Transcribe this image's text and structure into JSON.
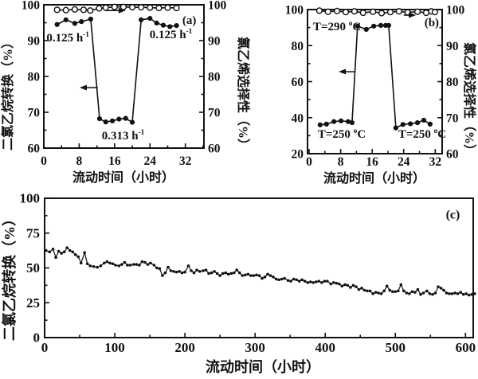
{
  "colors": {
    "background": "#ffffff",
    "ink": "#111111"
  },
  "chart_data": [
    {
      "id": "a",
      "type": "line",
      "panel_label": "(a)",
      "xlabel": "流动时间（小时）",
      "ylabel_left": "二氯乙烷转换（%）",
      "ylabel_right": "氯乙烯选择性（%）",
      "xlim": [
        0,
        36.2
      ],
      "x_ticks": [
        0,
        8,
        16,
        24,
        32
      ],
      "x_minor_ticks": [
        4,
        12,
        20,
        28,
        36
      ],
      "ylim_left": [
        60,
        100
      ],
      "y_left_ticks": [
        100,
        90,
        80,
        70,
        60
      ],
      "y_left_minor_ticks": [
        65,
        75,
        85,
        95
      ],
      "ylim_right": [
        60,
        100
      ],
      "y_right_ticks": [
        100,
        90,
        80,
        70,
        60
      ],
      "y_right_minor_ticks": [
        65,
        75,
        85,
        95
      ],
      "grid": false,
      "legend_position": "none",
      "series": [
        {
          "name": "二氯乙烷转换",
          "axis": "left",
          "marker": "filled_circle",
          "points": [
            [
              3,
              94.5
            ],
            [
              5,
              95.8
            ],
            [
              7,
              94.8
            ],
            [
              8.5,
              95.3
            ],
            [
              10.6,
              96.0
            ],
            [
              12.6,
              68.2
            ],
            [
              14,
              67.3
            ],
            [
              15.5,
              67.6
            ],
            [
              17,
              68.1
            ],
            [
              18.5,
              68.3
            ],
            [
              20,
              67.2
            ],
            [
              22,
              95.8
            ],
            [
              24,
              96.2
            ],
            [
              25.5,
              94.9
            ],
            [
              27,
              94.3
            ],
            [
              28.5,
              93.9
            ],
            [
              30,
              94.2
            ]
          ]
        },
        {
          "name": "氯乙烯选择性",
          "axis": "right",
          "marker": "open_circle",
          "points": [
            [
              3,
              98.6
            ],
            [
              5,
              98.5
            ],
            [
              7,
              98.7
            ],
            [
              9,
              98.6
            ],
            [
              10.5,
              98.4
            ],
            [
              12.5,
              99.0
            ],
            [
              14,
              99.2
            ],
            [
              16,
              99.4
            ],
            [
              18,
              99.4
            ],
            [
              20,
              99.3
            ],
            [
              22,
              99.3
            ],
            [
              24,
              99.2
            ],
            [
              26,
              99.1
            ],
            [
              28,
              99.2
            ],
            [
              30,
              99.1
            ]
          ]
        }
      ],
      "annotations": [
        {
          "text": "0.125 h",
          "sup": "-1",
          "x": 0.6,
          "y": 89.8,
          "anchor": "start"
        },
        {
          "text": "0.125 h",
          "sup": "-1",
          "x": 23.9,
          "y": 90.7,
          "anchor": "start"
        },
        {
          "text": "0.313 h",
          "sup": "-1",
          "x": 13.1,
          "y": 62.4,
          "anchor": "start"
        },
        {
          "text": "(a)",
          "x": 32.9,
          "y": 94.7,
          "anchor": "middle"
        }
      ],
      "arrows": [
        {
          "tail_x": 13.9,
          "tip_x": 18.5,
          "y": 98.4
        },
        {
          "tail_x": 12.2,
          "tip_x": 8.1,
          "y": 76.9
        }
      ]
    },
    {
      "id": "b",
      "type": "line",
      "panel_label": "(b)",
      "xlabel": "流动时间（小时）",
      "ylabel_left": "",
      "ylabel_right": "氯乙烯选择性（%）",
      "xlim": [
        -0.4,
        33.75
      ],
      "x_ticks": [
        0,
        8,
        16,
        24,
        32
      ],
      "x_minor_ticks": [
        4,
        12,
        20,
        28
      ],
      "ylim_left": [
        20,
        100
      ],
      "y_left_ticks": [
        100,
        80,
        60,
        40,
        20
      ],
      "y_left_minor_ticks": [
        30,
        50,
        70,
        90
      ],
      "ylim_right": [
        60,
        100
      ],
      "y_right_ticks": [
        100,
        90,
        80,
        70,
        60
      ],
      "y_right_minor_ticks": [
        65,
        75,
        85,
        95
      ],
      "grid": false,
      "legend_position": "none",
      "series": [
        {
          "name": "二氯乙烷转换",
          "axis": "left",
          "marker": "filled_circle",
          "points": [
            [
              2.8,
              36.0
            ],
            [
              4.4,
              36.4
            ],
            [
              6.3,
              37.8
            ],
            [
              8.1,
              38.2
            ],
            [
              9.9,
              37.8
            ],
            [
              10.9,
              37.2
            ],
            [
              12.3,
              90.8
            ],
            [
              14.5,
              89.0
            ],
            [
              16.4,
              90.8
            ],
            [
              18.2,
              91.2
            ],
            [
              19.4,
              91.2
            ],
            [
              20.2,
              91.2
            ],
            [
              22,
              34.3
            ],
            [
              23.8,
              36.2
            ],
            [
              25.7,
              36.6
            ],
            [
              27.5,
              37.2
            ],
            [
              29.1,
              38.6
            ],
            [
              30.7,
              36.4
            ]
          ]
        },
        {
          "name": "氯乙烯选择性",
          "axis": "right",
          "marker": "open_circle",
          "points": [
            [
              2.6,
              99.7
            ],
            [
              4.8,
              99.4
            ],
            [
              7.1,
              99.6
            ],
            [
              9.3,
              99.3
            ],
            [
              11.5,
              99.5
            ],
            [
              13.7,
              99.1
            ],
            [
              16.2,
              99.4
            ],
            [
              18.4,
              99.0
            ],
            [
              20.6,
              99.3
            ],
            [
              22.8,
              99.5
            ],
            [
              25,
              99.2
            ],
            [
              27.5,
              99.4
            ],
            [
              29.7,
              99.1
            ],
            [
              31,
              99.5
            ],
            [
              31.9,
              99.3
            ]
          ]
        }
      ],
      "annotations": [
        {
          "text": "T=290 ",
          "sup": "o",
          "tail": "C",
          "x": 1.0,
          "y": 88.5,
          "anchor": "start"
        },
        {
          "text": "T=250 ",
          "sup": "o",
          "tail": "C",
          "x": 2.2,
          "y": 28.8,
          "anchor": "start"
        },
        {
          "text": "T=250 ",
          "sup": "o",
          "tail": "C",
          "x": 22.6,
          "y": 28.8,
          "anchor": "start"
        },
        {
          "text": "(b)",
          "x": 31.1,
          "y": 90.7,
          "anchor": "middle"
        }
      ],
      "arrows": [
        {
          "tail_x": 24.0,
          "tip_x": 27.1,
          "y": 96.9
        },
        {
          "tail_x": 11.7,
          "tip_x": 7.5,
          "y": 65.5
        }
      ]
    },
    {
      "id": "c",
      "type": "line",
      "panel_label": "(c)",
      "xlabel": "流动时间（小时）",
      "ylabel_left": "二氯乙烷转换（%）",
      "ylabel_right": "",
      "xlim": [
        0,
        611
      ],
      "x_ticks": [
        0,
        100,
        200,
        300,
        400,
        500,
        600
      ],
      "x_minor_ticks": [
        50,
        150,
        250,
        350,
        450,
        550
      ],
      "ylim_left": [
        0,
        100
      ],
      "y_left_ticks": [
        100,
        75,
        50,
        25,
        0
      ],
      "y_left_minor_ticks": [
        12.5,
        37.5,
        62.5,
        87.5
      ],
      "grid": false,
      "legend_position": "none",
      "series": [
        {
          "name": "二氯乙烷转换",
          "axis": "left",
          "marker": "filled_circle_small",
          "points": [
            [
              2,
              62.5
            ],
            [
              7,
              61.5
            ],
            [
              12,
              63.5
            ],
            [
              16,
              57.5
            ],
            [
              20,
              62
            ],
            [
              24,
              60.5
            ],
            [
              28,
              61.5
            ],
            [
              32,
              64.5
            ],
            [
              36,
              62.5
            ],
            [
              40,
              61.5
            ],
            [
              44,
              59.5
            ],
            [
              48,
              58
            ],
            [
              52,
              53.5
            ],
            [
              57,
              61
            ],
            [
              61,
              53
            ],
            [
              65,
              51.5
            ],
            [
              70,
              51
            ],
            [
              75,
              50.5
            ],
            [
              80,
              51.5
            ],
            [
              85,
              53.5
            ],
            [
              89,
              54.5
            ],
            [
              93,
              53.5
            ],
            [
              97,
              53
            ],
            [
              101,
              52
            ],
            [
              106,
              51.5
            ],
            [
              110,
              52.5
            ],
            [
              114,
              54
            ],
            [
              118,
              52
            ],
            [
              122,
              52
            ],
            [
              127,
              52.5
            ],
            [
              131,
              52.5
            ],
            [
              135,
              52
            ],
            [
              139,
              54.5
            ],
            [
              143,
              54
            ],
            [
              147,
              52.5
            ],
            [
              151,
              53.5
            ],
            [
              156,
              52
            ],
            [
              160,
              50
            ],
            [
              164,
              49.5
            ],
            [
              168,
              44.5
            ],
            [
              172,
              46.5
            ],
            [
              176,
              50.5
            ],
            [
              180,
              48
            ],
            [
              184,
              47.5
            ],
            [
              188,
              47
            ],
            [
              192,
              47.5
            ],
            [
              196,
              46.5
            ],
            [
              200,
              47
            ],
            [
              205,
              51.5
            ],
            [
              209,
              48
            ],
            [
              213,
              46.5
            ],
            [
              217,
              48.5
            ],
            [
              221,
              47.5
            ],
            [
              226,
              48
            ],
            [
              230,
              48.5
            ],
            [
              234,
              46
            ],
            [
              238,
              46.5
            ],
            [
              242,
              47.5
            ],
            [
              246,
              46
            ],
            [
              250,
              44.5
            ],
            [
              254,
              46
            ],
            [
              258,
              46.5
            ],
            [
              262,
              45.5
            ],
            [
              266,
              46
            ],
            [
              270,
              46.5
            ],
            [
              274,
              48.5
            ],
            [
              278,
              46.5
            ],
            [
              282,
              44.5
            ],
            [
              286,
              45
            ],
            [
              290,
              45.5
            ],
            [
              294,
              44.5
            ],
            [
              298,
              44.5
            ],
            [
              302,
              45
            ],
            [
              306,
              44.5
            ],
            [
              310,
              42.5
            ],
            [
              314,
              43.5
            ],
            [
              318,
              45.5
            ],
            [
              322,
              44.5
            ],
            [
              326,
              43.5
            ],
            [
              330,
              42
            ],
            [
              334,
              41.5
            ],
            [
              338,
              42
            ],
            [
              342,
              42.5
            ],
            [
              347,
              41
            ],
            [
              351,
              40.5
            ],
            [
              355,
              42
            ],
            [
              359,
              41.5
            ],
            [
              363,
              40.5
            ],
            [
              367,
              41.5
            ],
            [
              371,
              40.5
            ],
            [
              375,
              39.5
            ],
            [
              379,
              40
            ],
            [
              383,
              39.5
            ],
            [
              387,
              40
            ],
            [
              391,
              40.5
            ],
            [
              395,
              39.5
            ],
            [
              399,
              40.5
            ],
            [
              403,
              40.5
            ],
            [
              408,
              38.5
            ],
            [
              412,
              39.5
            ],
            [
              416,
              39
            ],
            [
              420,
              38.5
            ],
            [
              424,
              37
            ],
            [
              428,
              38
            ],
            [
              432,
              37.5
            ],
            [
              436,
              36
            ],
            [
              440,
              37.5
            ],
            [
              444,
              36.5
            ],
            [
              448,
              34.5
            ],
            [
              452,
              35.5
            ],
            [
              456,
              34
            ],
            [
              460,
              33.5
            ],
            [
              464,
              33.5
            ],
            [
              468,
              31.5
            ],
            [
              472,
              32.5
            ],
            [
              476,
              32
            ],
            [
              480,
              31.5
            ],
            [
              484,
              33.5
            ],
            [
              488,
              37
            ],
            [
              492,
              34
            ],
            [
              496,
              33
            ],
            [
              500,
              33
            ],
            [
              504,
              33.5
            ],
            [
              508,
              38
            ],
            [
              512,
              33.5
            ],
            [
              516,
              32
            ],
            [
              520,
              31.5
            ],
            [
              524,
              33
            ],
            [
              528,
              32.5
            ],
            [
              532,
              34.5
            ],
            [
              536,
              31
            ],
            [
              540,
              32
            ],
            [
              545,
              33.5
            ],
            [
              549,
              31.5
            ],
            [
              553,
              31
            ],
            [
              557,
              32
            ],
            [
              561,
              36.5
            ],
            [
              565,
              35.5
            ],
            [
              569,
              34
            ],
            [
              573,
              32
            ],
            [
              577,
              31.5
            ],
            [
              581,
              31.5
            ],
            [
              585,
              32
            ],
            [
              589,
              31.5
            ],
            [
              593,
              32.5
            ],
            [
              597,
              31
            ],
            [
              601,
              31.5
            ],
            [
              605,
              30.5
            ],
            [
              609,
              31
            ],
            [
              613,
              31.5
            ]
          ]
        }
      ],
      "annotations": [
        {
          "text": "(c)",
          "x": 582,
          "y": 85.5,
          "anchor": "middle"
        }
      ],
      "arrows": []
    }
  ]
}
